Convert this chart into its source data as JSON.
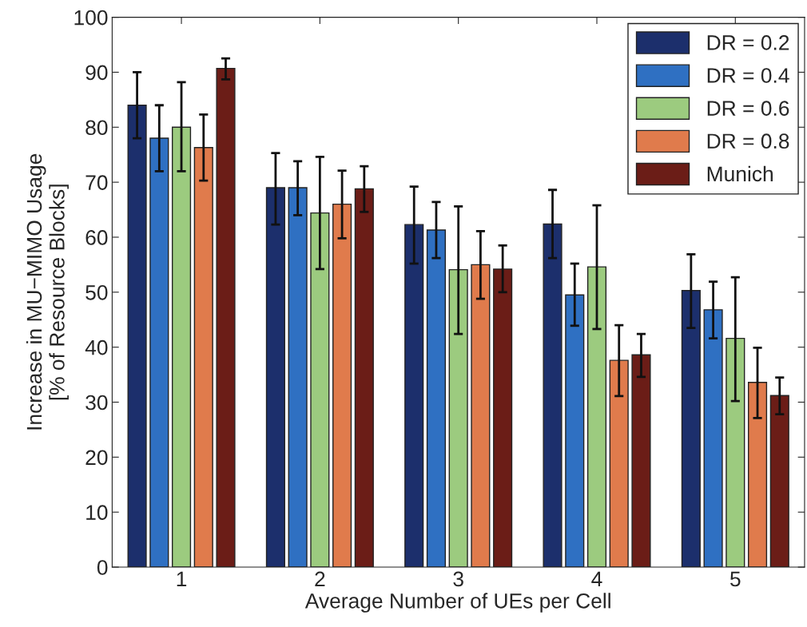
{
  "chart_data": {
    "type": "bar",
    "xlabel": "Average Number of UEs per Cell",
    "ylabel": "Increase in MU−MIMO Usage\n[% of Resource Blocks]",
    "categories": [
      "1",
      "2",
      "3",
      "4",
      "5"
    ],
    "series": [
      {
        "name": "DR = 0.2",
        "color": "#1c2f6c",
        "values": [
          84,
          69,
          62.3,
          62.4,
          50.3
        ],
        "errors": [
          [
            78,
            90
          ],
          [
            62.3,
            75.3
          ],
          [
            55.2,
            69.2
          ],
          [
            56.2,
            68.6
          ],
          [
            43.5,
            56.9
          ]
        ]
      },
      {
        "name": "DR = 0.4",
        "color": "#2f70c2",
        "values": [
          78,
          69,
          61.3,
          49.5,
          46.8
        ],
        "errors": [
          [
            72,
            84
          ],
          [
            64,
            73.8
          ],
          [
            56.2,
            66.4
          ],
          [
            43.9,
            55.2
          ],
          [
            41.6,
            51.9
          ]
        ]
      },
      {
        "name": "DR = 0.6",
        "color": "#9ccb7f",
        "values": [
          80,
          64.4,
          54.1,
          54.6,
          41.6
        ],
        "errors": [
          [
            72,
            88.2
          ],
          [
            54.2,
            74.6
          ],
          [
            42.4,
            65.6
          ],
          [
            43.3,
            65.8
          ],
          [
            30.2,
            52.7
          ]
        ]
      },
      {
        "name": "DR = 0.8",
        "color": "#e07b4c",
        "values": [
          76.3,
          66,
          55,
          37.6,
          33.6
        ],
        "errors": [
          [
            70.3,
            82.3
          ],
          [
            59.8,
            72.1
          ],
          [
            48.8,
            61.1
          ],
          [
            31.1,
            44
          ],
          [
            27.1,
            39.9
          ]
        ]
      },
      {
        "name": "Munich",
        "color": "#6b1d17",
        "values": [
          90.7,
          68.8,
          54.2,
          38.6,
          31.2
        ],
        "errors": [
          [
            88.7,
            92.5
          ],
          [
            64.6,
            72.9
          ],
          [
            50,
            58.5
          ],
          [
            34.6,
            42.4
          ],
          [
            27.8,
            34.5
          ]
        ]
      }
    ],
    "ylim": [
      0,
      100
    ],
    "yticks": [
      0,
      10,
      20,
      30,
      40,
      50,
      60,
      70,
      80,
      90,
      100
    ],
    "grid": false,
    "legend": "top right"
  }
}
